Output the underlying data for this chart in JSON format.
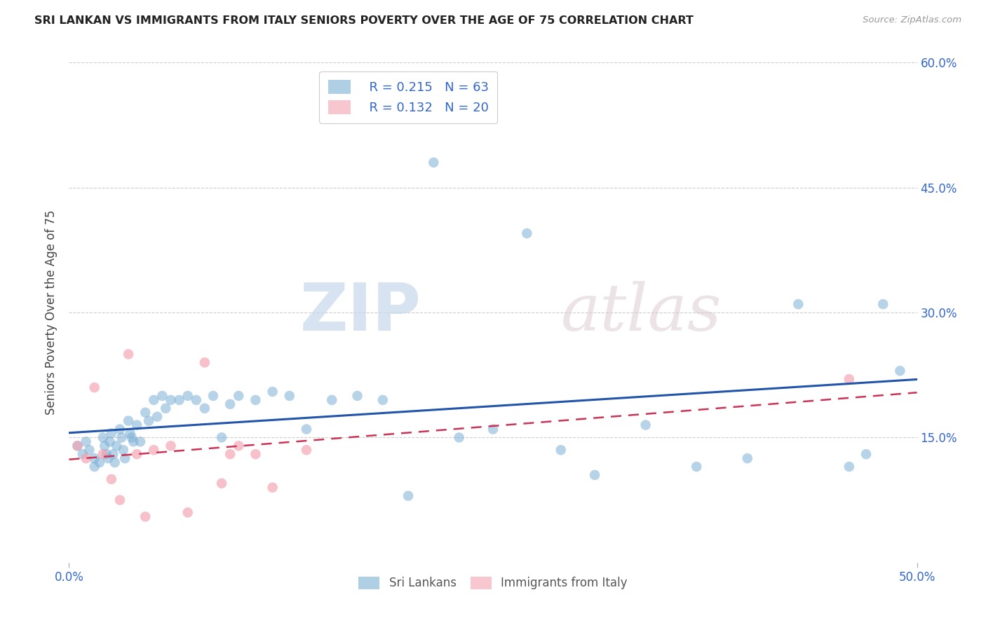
{
  "title": "SRI LANKAN VS IMMIGRANTS FROM ITALY SENIORS POVERTY OVER THE AGE OF 75 CORRELATION CHART",
  "source": "Source: ZipAtlas.com",
  "ylabel": "Seniors Poverty Over the Age of 75",
  "xlim": [
    0.0,
    0.5
  ],
  "ylim": [
    0.0,
    0.6
  ],
  "xticks": [
    0.0,
    0.5
  ],
  "xticklabels": [
    "0.0%",
    "50.0%"
  ],
  "yticks": [
    0.15,
    0.3,
    0.45,
    0.6
  ],
  "yticklabels": [
    "15.0%",
    "30.0%",
    "45.0%",
    "60.0%"
  ],
  "right_yticks": [
    0.15,
    0.3,
    0.45,
    0.6
  ],
  "right_yticklabels": [
    "15.0%",
    "30.0%",
    "45.0%",
    "60.0%"
  ],
  "sri_lankan_R": 0.215,
  "sri_lankan_N": 63,
  "italy_R": 0.132,
  "italy_N": 20,
  "sri_lankan_color": "#7BAFD4",
  "italy_color": "#F4A0B0",
  "trend_sri_lankan_color": "#2255AA",
  "trend_italy_color": "#CC3355",
  "background_color": "#FFFFFF",
  "grid_color": "#CCCCCC",
  "watermark_zip": "ZIP",
  "watermark_atlas": "atlas",
  "tick_color": "#3366CC",
  "ylabel_color": "#444444",
  "sri_lankans_x": [
    0.005,
    0.008,
    0.01,
    0.012,
    0.015,
    0.015,
    0.018,
    0.02,
    0.021,
    0.022,
    0.023,
    0.024,
    0.025,
    0.026,
    0.027,
    0.028,
    0.03,
    0.031,
    0.032,
    0.033,
    0.035,
    0.036,
    0.037,
    0.038,
    0.04,
    0.042,
    0.045,
    0.047,
    0.05,
    0.052,
    0.055,
    0.057,
    0.06,
    0.065,
    0.07,
    0.075,
    0.08,
    0.085,
    0.09,
    0.095,
    0.1,
    0.11,
    0.12,
    0.13,
    0.14,
    0.155,
    0.17,
    0.185,
    0.2,
    0.215,
    0.23,
    0.25,
    0.27,
    0.29,
    0.31,
    0.34,
    0.37,
    0.4,
    0.43,
    0.46,
    0.47,
    0.48,
    0.49
  ],
  "sri_lankans_y": [
    0.14,
    0.13,
    0.145,
    0.135,
    0.125,
    0.115,
    0.12,
    0.15,
    0.14,
    0.13,
    0.125,
    0.145,
    0.155,
    0.13,
    0.12,
    0.14,
    0.16,
    0.15,
    0.135,
    0.125,
    0.17,
    0.155,
    0.15,
    0.145,
    0.165,
    0.145,
    0.18,
    0.17,
    0.195,
    0.175,
    0.2,
    0.185,
    0.195,
    0.195,
    0.2,
    0.195,
    0.185,
    0.2,
    0.15,
    0.19,
    0.2,
    0.195,
    0.205,
    0.2,
    0.16,
    0.195,
    0.2,
    0.195,
    0.08,
    0.48,
    0.15,
    0.16,
    0.395,
    0.135,
    0.105,
    0.165,
    0.115,
    0.125,
    0.31,
    0.115,
    0.13,
    0.31,
    0.23
  ],
  "italy_x": [
    0.005,
    0.01,
    0.015,
    0.02,
    0.025,
    0.03,
    0.035,
    0.04,
    0.045,
    0.05,
    0.06,
    0.07,
    0.08,
    0.09,
    0.095,
    0.1,
    0.11,
    0.12,
    0.14,
    0.46
  ],
  "italy_y": [
    0.14,
    0.125,
    0.21,
    0.13,
    0.1,
    0.075,
    0.25,
    0.13,
    0.055,
    0.135,
    0.14,
    0.06,
    0.24,
    0.095,
    0.13,
    0.14,
    0.13,
    0.09,
    0.135,
    0.22
  ]
}
